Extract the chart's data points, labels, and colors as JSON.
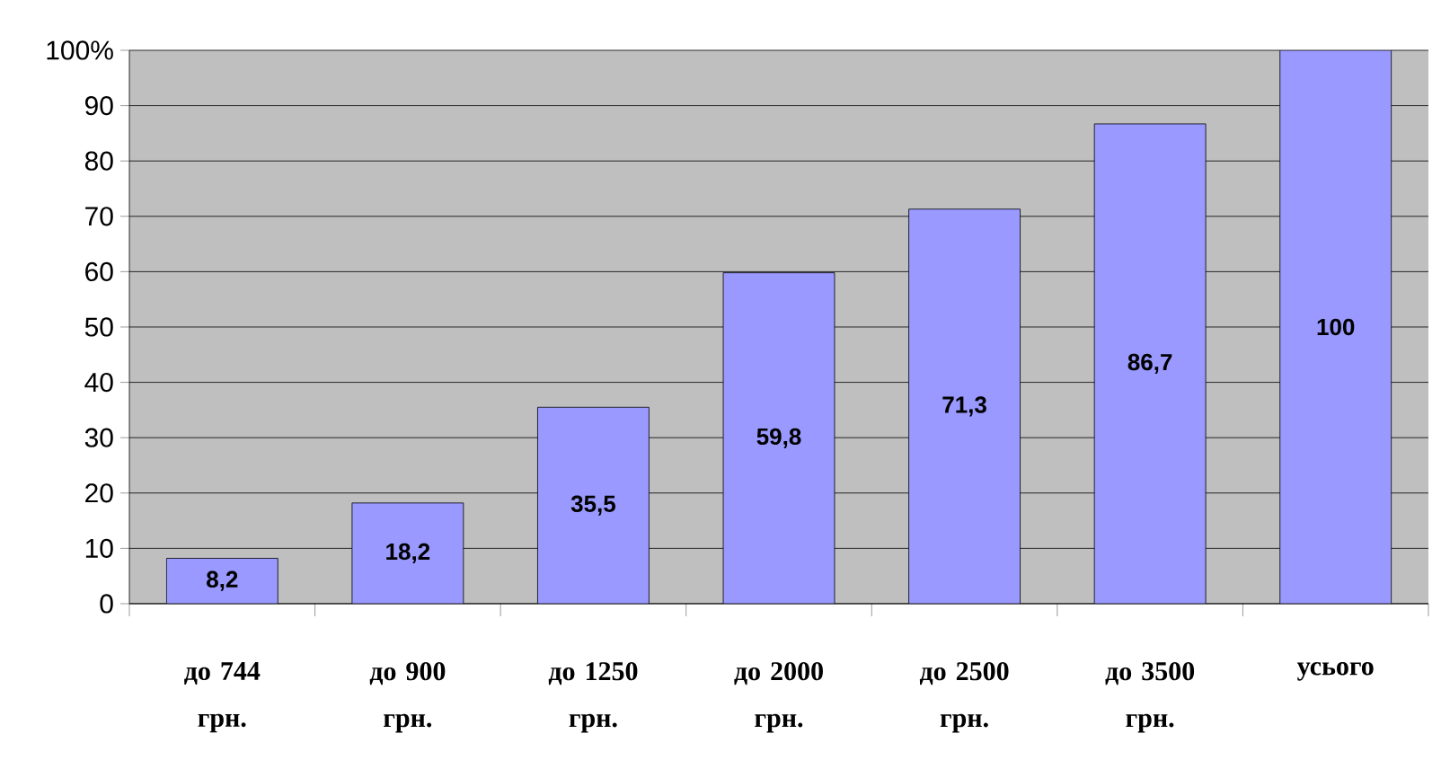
{
  "chart_data": {
    "type": "bar",
    "categories": [
      "до 744 грн.",
      "до 900 грн.",
      "до 1250 грн.",
      "до 2000 грн.",
      "до 2500 грн.",
      "до 3500 грн.",
      "усього"
    ],
    "values": [
      8.2,
      18.2,
      35.5,
      59.8,
      71.3,
      86.7,
      100
    ],
    "value_labels": [
      "8,2",
      "18,2",
      "35,5",
      "59,8",
      "71,3",
      "86,7",
      "100"
    ],
    "color": "#9999ff",
    "ylim": [
      0,
      100
    ],
    "yticks": [
      0,
      10,
      20,
      30,
      40,
      50,
      60,
      70,
      80,
      90,
      {
        "value": 100,
        "label": "100%"
      }
    ],
    "grid": "y"
  }
}
